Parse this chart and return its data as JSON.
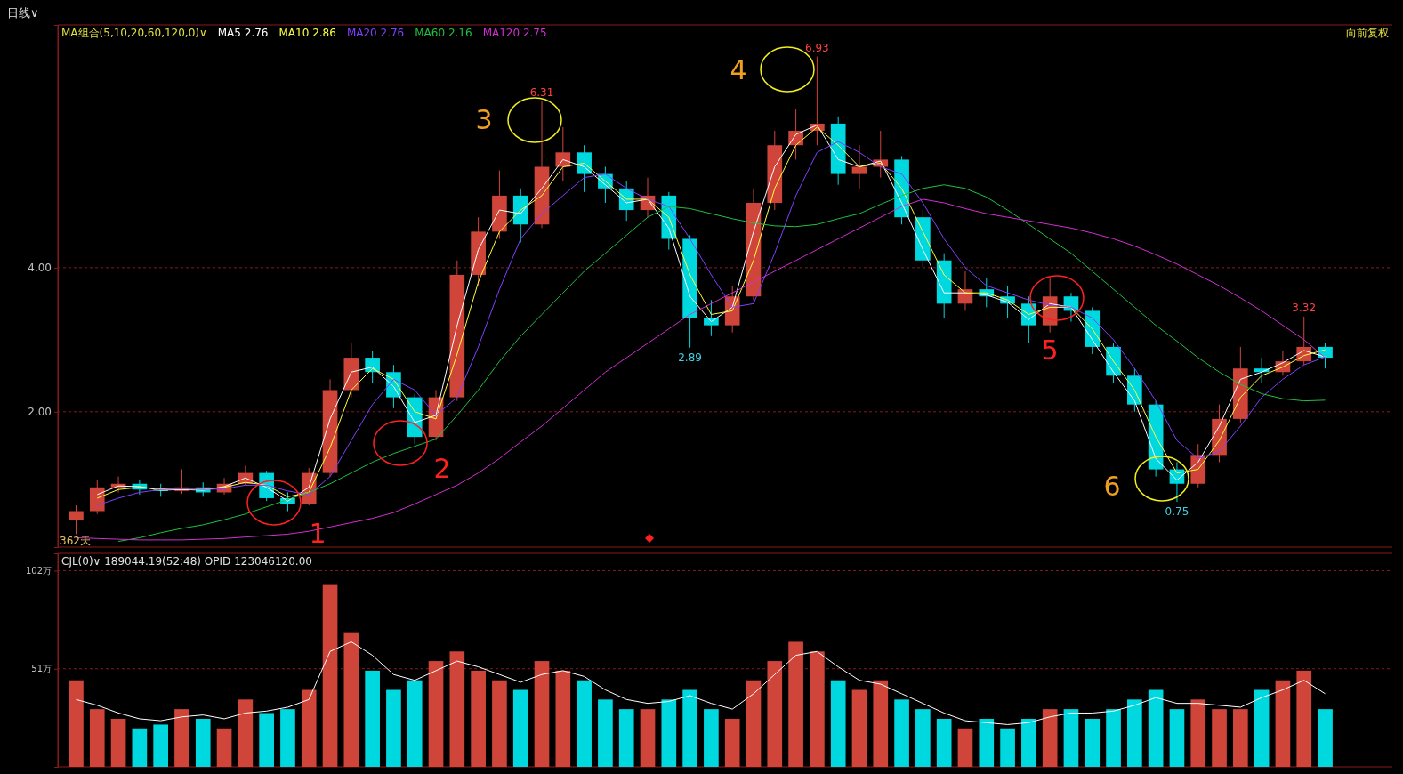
{
  "chart_data": [
    {
      "type": "candlestick",
      "title": "日线∨",
      "categories": [
        null,
        null,
        null,
        null,
        null,
        null,
        null,
        null,
        null,
        null,
        null,
        null,
        null,
        null,
        null,
        null,
        null,
        null,
        null,
        null,
        null,
        null,
        null,
        null,
        null,
        null,
        null,
        null,
        null,
        null,
        null,
        null,
        null,
        null,
        null,
        null,
        null,
        null,
        null,
        null,
        null,
        null,
        null,
        null,
        null,
        null,
        null,
        null,
        null,
        null,
        null,
        null,
        null,
        null,
        null,
        null,
        null,
        null,
        null,
        null
      ],
      "ohlc": [
        [
          0.5,
          0.7,
          0.3,
          0.62
        ],
        [
          0.62,
          1.05,
          0.58,
          0.95
        ],
        [
          0.95,
          1.1,
          0.88,
          1.0
        ],
        [
          1.0,
          1.05,
          0.85,
          0.92
        ],
        [
          0.92,
          1.0,
          0.82,
          0.9
        ],
        [
          0.9,
          1.2,
          0.86,
          0.95
        ],
        [
          0.95,
          1.02,
          0.82,
          0.88
        ],
        [
          0.88,
          1.08,
          0.85,
          1.0
        ],
        [
          1.0,
          1.25,
          0.98,
          1.15
        ],
        [
          1.15,
          1.18,
          0.76,
          0.8
        ],
        [
          0.8,
          0.88,
          0.62,
          0.72
        ],
        [
          0.72,
          1.22,
          0.7,
          1.15
        ],
        [
          1.15,
          2.45,
          1.1,
          2.3
        ],
        [
          2.3,
          2.95,
          2.2,
          2.75
        ],
        [
          2.75,
          2.85,
          2.4,
          2.55
        ],
        [
          2.55,
          2.65,
          2.05,
          2.2
        ],
        [
          2.2,
          2.25,
          1.55,
          1.65
        ],
        [
          1.65,
          2.3,
          1.6,
          2.2
        ],
        [
          2.2,
          4.1,
          2.15,
          3.9
        ],
        [
          3.9,
          4.7,
          3.75,
          4.5
        ],
        [
          4.5,
          5.35,
          4.4,
          5.0
        ],
        [
          5.0,
          5.1,
          4.35,
          4.6
        ],
        [
          4.6,
          6.31,
          4.55,
          5.4
        ],
        [
          5.4,
          5.95,
          5.2,
          5.6
        ],
        [
          5.6,
          5.7,
          5.05,
          5.3
        ],
        [
          5.3,
          5.4,
          4.9,
          5.1
        ],
        [
          5.1,
          5.2,
          4.65,
          4.8
        ],
        [
          4.8,
          5.25,
          4.7,
          5.0
        ],
        [
          5.0,
          5.05,
          4.25,
          4.4
        ],
        [
          4.4,
          4.45,
          2.89,
          3.3
        ],
        [
          3.3,
          3.55,
          3.05,
          3.2
        ],
        [
          3.2,
          3.75,
          3.1,
          3.6
        ],
        [
          3.6,
          5.1,
          3.55,
          4.9
        ],
        [
          4.9,
          5.9,
          4.8,
          5.7
        ],
        [
          5.7,
          6.2,
          5.5,
          5.9
        ],
        [
          5.9,
          6.93,
          5.7,
          6.0
        ],
        [
          6.0,
          6.1,
          5.15,
          5.3
        ],
        [
          5.3,
          5.7,
          5.1,
          5.4
        ],
        [
          5.4,
          5.9,
          5.25,
          5.5
        ],
        [
          5.5,
          5.55,
          4.6,
          4.7
        ],
        [
          4.7,
          4.8,
          4.0,
          4.1
        ],
        [
          4.1,
          4.2,
          3.3,
          3.5
        ],
        [
          3.5,
          3.95,
          3.4,
          3.7
        ],
        [
          3.7,
          3.85,
          3.45,
          3.6
        ],
        [
          3.6,
          3.75,
          3.3,
          3.5
        ],
        [
          3.5,
          3.6,
          2.95,
          3.2
        ],
        [
          3.2,
          3.85,
          3.1,
          3.6
        ],
        [
          3.6,
          3.65,
          3.25,
          3.4
        ],
        [
          3.4,
          3.45,
          2.8,
          2.9
        ],
        [
          2.9,
          2.95,
          2.4,
          2.5
        ],
        [
          2.5,
          2.6,
          2.0,
          2.1
        ],
        [
          2.1,
          2.15,
          1.1,
          1.2
        ],
        [
          1.2,
          1.3,
          0.75,
          1.0
        ],
        [
          1.0,
          1.55,
          0.95,
          1.4
        ],
        [
          1.4,
          2.1,
          1.3,
          1.9
        ],
        [
          1.9,
          2.9,
          1.85,
          2.6
        ],
        [
          2.6,
          2.75,
          2.4,
          2.55
        ],
        [
          2.55,
          2.85,
          2.5,
          2.7
        ],
        [
          2.7,
          3.32,
          2.65,
          2.9
        ],
        [
          2.9,
          2.95,
          2.6,
          2.75
        ]
      ],
      "colors": [
        "#d0453a",
        "#d0453a",
        "#d0453a",
        "#00d8e0",
        "#00d8e0",
        "#d0453a",
        "#00d8e0",
        "#d0453a",
        "#d0453a",
        "#00d8e0",
        "#00d8e0",
        "#d0453a",
        "#d0453a",
        "#d0453a",
        "#00d8e0",
        "#00d8e0",
        "#00d8e0",
        "#d0453a",
        "#d0453a",
        "#d0453a",
        "#d0453a",
        "#00d8e0",
        "#d0453a",
        "#d0453a",
        "#00d8e0",
        "#00d8e0",
        "#00d8e0",
        "#d0453a",
        "#00d8e0",
        "#00d8e0",
        "#00d8e0",
        "#d0453a",
        "#d0453a",
        "#d0453a",
        "#d0453a",
        "#d0453a",
        "#00d8e0",
        "#d0453a",
        "#d0453a",
        "#00d8e0",
        "#00d8e0",
        "#00d8e0",
        "#d0453a",
        "#00d8e0",
        "#00d8e0",
        "#00d8e0",
        "#d0453a",
        "#00d8e0",
        "#00d8e0",
        "#00d8e0",
        "#00d8e0",
        "#00d8e0",
        "#00d8e0",
        "#d0453a",
        "#d0453a",
        "#d0453a",
        "#00d8e0",
        "#d0453a",
        "#d0453a",
        "#00d8e0"
      ],
      "series": [
        {
          "type": "line",
          "name": "MA5 2.76",
          "color": "#ffffff",
          "values": [
            null,
            0.85,
            0.97,
            0.96,
            0.91,
            0.92,
            0.91,
            0.96,
            1.08,
            0.95,
            0.76,
            0.95,
            1.9,
            2.55,
            2.62,
            2.35,
            1.85,
            1.95,
            3.2,
            4.25,
            4.8,
            4.75,
            5.1,
            5.5,
            5.4,
            5.15,
            4.9,
            4.95,
            4.55,
            3.6,
            3.25,
            3.45,
            4.5,
            5.4,
            5.85,
            5.98,
            5.5,
            5.4,
            5.48,
            4.9,
            4.25,
            3.65,
            3.65,
            3.62,
            3.52,
            3.28,
            3.5,
            3.45,
            3.0,
            2.55,
            2.15,
            1.35,
            1.05,
            1.3,
            1.8,
            2.45,
            2.55,
            2.68,
            2.85,
            2.76
          ]
        },
        {
          "type": "line",
          "name": "MA10 2.86",
          "color": "#ffff40",
          "values": [
            null,
            0.8,
            0.92,
            0.95,
            0.93,
            0.92,
            0.92,
            0.95,
            1.02,
            0.98,
            0.82,
            0.88,
            1.5,
            2.3,
            2.6,
            2.45,
            2.0,
            1.9,
            2.8,
            3.8,
            4.5,
            4.8,
            5.0,
            5.4,
            5.45,
            5.2,
            4.95,
            4.95,
            4.7,
            3.9,
            3.35,
            3.4,
            4.1,
            5.1,
            5.7,
            5.95,
            5.7,
            5.4,
            5.45,
            5.1,
            4.5,
            3.9,
            3.65,
            3.65,
            3.55,
            3.35,
            3.45,
            3.45,
            3.15,
            2.7,
            2.3,
            1.65,
            1.15,
            1.2,
            1.6,
            2.2,
            2.5,
            2.62,
            2.78,
            2.86
          ]
        },
        {
          "type": "line",
          "name": "MA20 2.76",
          "color": "#8040ff",
          "values": [
            null,
            0.7,
            0.8,
            0.88,
            0.92,
            0.93,
            0.92,
            0.93,
            0.98,
            0.98,
            0.9,
            0.85,
            1.1,
            1.6,
            2.1,
            2.45,
            2.3,
            1.95,
            2.2,
            2.9,
            3.7,
            4.4,
            4.75,
            5.0,
            5.25,
            5.3,
            5.1,
            4.95,
            4.85,
            4.4,
            3.9,
            3.45,
            3.5,
            4.2,
            5.0,
            5.6,
            5.75,
            5.6,
            5.4,
            5.3,
            4.9,
            4.4,
            4.0,
            3.75,
            3.65,
            3.55,
            3.48,
            3.45,
            3.3,
            3.0,
            2.6,
            2.15,
            1.6,
            1.35,
            1.45,
            1.8,
            2.2,
            2.45,
            2.65,
            2.76
          ]
        },
        {
          "type": "line",
          "name": "MA60 2.16",
          "color": "#20c040",
          "values": [
            null,
            null,
            0.2,
            0.25,
            0.32,
            0.38,
            0.43,
            0.5,
            0.58,
            0.68,
            0.78,
            0.88,
            1.0,
            1.15,
            1.3,
            1.42,
            1.52,
            1.62,
            1.95,
            2.3,
            2.7,
            3.05,
            3.35,
            3.65,
            3.95,
            4.2,
            4.45,
            4.7,
            4.85,
            4.82,
            4.75,
            4.68,
            4.62,
            4.58,
            4.57,
            4.6,
            4.68,
            4.75,
            4.88,
            5.0,
            5.1,
            5.15,
            5.1,
            4.98,
            4.8,
            4.6,
            4.4,
            4.2,
            3.95,
            3.7,
            3.45,
            3.2,
            2.98,
            2.75,
            2.55,
            2.38,
            2.25,
            2.18,
            2.15,
            2.16
          ]
        },
        {
          "type": "line",
          "name": "MA120 2.75",
          "color": "#d030d0",
          "values": [
            0.25,
            0.24,
            0.23,
            0.22,
            0.22,
            0.22,
            0.23,
            0.24,
            0.26,
            0.28,
            0.3,
            0.34,
            0.4,
            0.46,
            0.52,
            0.6,
            0.72,
            0.85,
            0.98,
            1.15,
            1.35,
            1.58,
            1.8,
            2.05,
            2.3,
            2.55,
            2.75,
            2.95,
            3.15,
            3.35,
            3.5,
            3.65,
            3.8,
            3.95,
            4.1,
            4.25,
            4.4,
            4.55,
            4.7,
            4.85,
            4.95,
            4.9,
            4.82,
            4.75,
            4.7,
            4.65,
            4.6,
            4.55,
            4.48,
            4.4,
            4.3,
            4.18,
            4.05,
            3.9,
            3.75,
            3.58,
            3.4,
            3.2,
            3.0,
            2.75
          ]
        }
      ],
      "ylim": [
        0.12,
        7.37
      ],
      "yticks": [
        {
          "value": 2,
          "label": "2.00"
        },
        {
          "value": 4,
          "label": "4.00"
        }
      ],
      "grid": "y",
      "legend": "top left",
      "tick_labels": "y",
      "annotations": [
        "MA组合(5,10,20,60,120,0)∨",
        "向前复权",
        "362天",
        {
          "text": "6.31",
          "y": 6.31
        },
        {
          "text": "6.93",
          "y": 6.93
        },
        {
          "text": "2.89",
          "y": 2.89
        },
        {
          "text": "0.75",
          "y": 0.75
        },
        {
          "text": "3.32",
          "y": 3.32
        },
        "1",
        "2",
        "3",
        "4",
        "5",
        "6"
      ]
    },
    {
      "type": "bar",
      "title": "CJL(0)∨  189044.19(52:48)  OPID 123046120.00",
      "categories": [
        null,
        null,
        null,
        null,
        null,
        null,
        null,
        null,
        null,
        null,
        null,
        null,
        null,
        null,
        null,
        null,
        null,
        null,
        null,
        null,
        null,
        null,
        null,
        null,
        null,
        null,
        null,
        null,
        null,
        null,
        null,
        null,
        null,
        null,
        null,
        null,
        null,
        null,
        null,
        null,
        null,
        null,
        null,
        null,
        null,
        null,
        null,
        null,
        null,
        null,
        null,
        null,
        null,
        null,
        null,
        null,
        null,
        null,
        null,
        null
      ],
      "values": [
        45,
        30,
        25,
        20,
        22,
        30,
        25,
        20,
        35,
        28,
        30,
        40,
        95,
        70,
        50,
        40,
        45,
        55,
        60,
        50,
        45,
        40,
        55,
        50,
        45,
        35,
        30,
        30,
        35,
        40,
        30,
        25,
        45,
        55,
        65,
        60,
        45,
        40,
        45,
        35,
        30,
        25,
        20,
        25,
        20,
        25,
        30,
        30,
        25,
        30,
        35,
        40,
        30,
        35,
        30,
        30,
        40,
        45,
        50,
        30
      ],
      "colors": [
        "#d0453a",
        "#d0453a",
        "#d0453a",
        "#00d8e0",
        "#00d8e0",
        "#d0453a",
        "#00d8e0",
        "#d0453a",
        "#d0453a",
        "#00d8e0",
        "#00d8e0",
        "#d0453a",
        "#d0453a",
        "#d0453a",
        "#00d8e0",
        "#00d8e0",
        "#00d8e0",
        "#d0453a",
        "#d0453a",
        "#d0453a",
        "#d0453a",
        "#00d8e0",
        "#d0453a",
        "#d0453a",
        "#00d8e0",
        "#00d8e0",
        "#00d8e0",
        "#d0453a",
        "#00d8e0",
        "#00d8e0",
        "#00d8e0",
        "#d0453a",
        "#d0453a",
        "#d0453a",
        "#d0453a",
        "#d0453a",
        "#00d8e0",
        "#d0453a",
        "#d0453a",
        "#00d8e0",
        "#00d8e0",
        "#00d8e0",
        "#d0453a",
        "#00d8e0",
        "#00d8e0",
        "#00d8e0",
        "#d0453a",
        "#00d8e0",
        "#00d8e0",
        "#00d8e0",
        "#00d8e0",
        "#00d8e0",
        "#00d8e0",
        "#d0453a",
        "#d0453a",
        "#d0453a",
        "#00d8e0",
        "#d0453a",
        "#d0453a",
        "#00d8e0"
      ],
      "series": [
        {
          "type": "line",
          "color": "#ffffff",
          "values": [
            35,
            32,
            28,
            25,
            24,
            26,
            27,
            25,
            28,
            29,
            31,
            35,
            60,
            65,
            58,
            48,
            45,
            50,
            55,
            52,
            48,
            44,
            48,
            50,
            47,
            40,
            35,
            33,
            34,
            37,
            33,
            30,
            38,
            48,
            58,
            60,
            52,
            45,
            43,
            38,
            33,
            28,
            24,
            23,
            22,
            23,
            26,
            28,
            28,
            29,
            32,
            36,
            33,
            33,
            32,
            31,
            36,
            40,
            45,
            38
          ]
        }
      ],
      "ylim": [
        0,
        111
      ],
      "yticks": [
        {
          "value": 51,
          "label": "51万"
        },
        {
          "value": 102,
          "label": "102万"
        }
      ],
      "grid": "y",
      "tick_labels": "y"
    }
  ]
}
